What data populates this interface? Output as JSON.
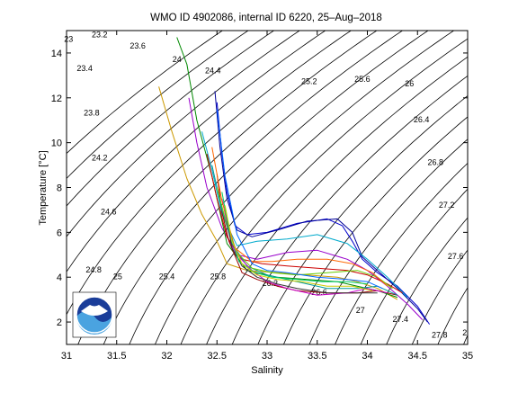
{
  "chart_data": {
    "type": "line",
    "title": "WMO ID 4902086, internal ID 6220, 25–Aug–2018",
    "xlabel": "Salinity",
    "ylabel": "Temperature [°C]",
    "xlim": [
      31,
      35
    ],
    "ylim": [
      1,
      15
    ],
    "xticks": [
      "31",
      "31.5",
      "32",
      "32.5",
      "33",
      "33.5",
      "34",
      "34.5",
      "35"
    ],
    "yticks": [
      "2",
      "4",
      "6",
      "8",
      "10",
      "12",
      "14"
    ],
    "grid": false,
    "isopycnal_labels": [
      {
        "text": "23",
        "s": 31.02,
        "t": 14.6
      },
      {
        "text": "23.2",
        "s": 31.33,
        "t": 14.8
      },
      {
        "text": "23.4",
        "s": 31.18,
        "t": 13.3
      },
      {
        "text": "23.6",
        "s": 31.71,
        "t": 14.3
      },
      {
        "text": "23.8",
        "s": 31.25,
        "t": 11.3
      },
      {
        "text": "24",
        "s": 32.1,
        "t": 13.7
      },
      {
        "text": "24.2",
        "s": 31.33,
        "t": 9.3
      },
      {
        "text": "24.4",
        "s": 32.46,
        "t": 13.2
      },
      {
        "text": "24.6",
        "s": 31.42,
        "t": 6.9
      },
      {
        "text": "24.8",
        "s": 31.27,
        "t": 4.3
      },
      {
        "text": "25",
        "s": 31.51,
        "t": 4.0
      },
      {
        "text": "25.2",
        "s": 33.42,
        "t": 12.7
      },
      {
        "text": "25.4",
        "s": 32.0,
        "t": 4.0
      },
      {
        "text": "25.6",
        "s": 33.95,
        "t": 12.8
      },
      {
        "text": "25.8",
        "s": 32.51,
        "t": 4.0
      },
      {
        "text": "26",
        "s": 34.42,
        "t": 12.6
      },
      {
        "text": "26.2",
        "s": 33.03,
        "t": 3.7
      },
      {
        "text": "26.4",
        "s": 34.54,
        "t": 11.0
      },
      {
        "text": "26.6",
        "s": 33.52,
        "t": 3.3
      },
      {
        "text": "26.8",
        "s": 34.68,
        "t": 9.1
      },
      {
        "text": "27",
        "s": 33.93,
        "t": 2.5
      },
      {
        "text": "27.2",
        "s": 34.79,
        "t": 7.2
      },
      {
        "text": "27.4",
        "s": 34.33,
        "t": 2.1
      },
      {
        "text": "27.6",
        "s": 34.88,
        "t": 4.9
      },
      {
        "text": "27.8",
        "s": 34.72,
        "t": 1.4
      },
      {
        "text": "2",
        "s": 34.97,
        "t": 1.5
      }
    ],
    "series": [
      {
        "color": "#0000cc",
        "s": [
          32.5,
          32.55,
          32.6,
          32.68,
          32.8,
          33.0,
          33.3,
          33.6,
          33.75,
          33.85,
          33.95,
          34.1,
          34.3,
          34.5,
          34.62
        ],
        "t": [
          11.8,
          9.5,
          7.8,
          6.3,
          5.9,
          6.0,
          6.4,
          6.6,
          6.3,
          5.6,
          4.8,
          4.2,
          3.6,
          2.7,
          1.9
        ]
      },
      {
        "color": "#000099",
        "s": [
          32.48,
          32.53,
          32.6,
          32.7,
          32.85,
          33.1,
          33.4,
          33.7,
          33.85,
          33.95,
          34.1,
          34.3,
          34.5,
          34.6
        ],
        "t": [
          12.3,
          9.8,
          7.5,
          6.1,
          5.8,
          6.1,
          6.5,
          6.6,
          6.0,
          4.9,
          4.3,
          3.5,
          2.6,
          2.0
        ]
      },
      {
        "color": "#9900cc",
        "s": [
          32.22,
          32.3,
          32.4,
          32.55,
          32.7,
          32.9,
          33.2,
          33.5,
          33.8,
          34.0,
          34.2,
          34.4,
          34.55
        ],
        "t": [
          12.0,
          10.0,
          8.0,
          6.2,
          5.0,
          4.8,
          5.1,
          5.2,
          4.8,
          4.3,
          3.6,
          2.8,
          2.1
        ]
      },
      {
        "color": "#cc9900",
        "s": [
          31.92,
          32.05,
          32.2,
          32.35,
          32.5,
          32.6,
          32.8,
          33.1,
          33.4,
          33.7,
          33.9,
          34.1,
          34.3
        ],
        "t": [
          12.5,
          10.5,
          8.4,
          6.8,
          5.6,
          4.6,
          4.3,
          4.2,
          4.1,
          4.0,
          3.8,
          3.5,
          3.0
        ]
      },
      {
        "color": "#008800",
        "s": [
          32.1,
          32.2,
          32.3,
          32.45,
          32.6,
          32.8,
          33.1,
          33.4,
          33.7,
          33.9,
          34.1,
          34.3
        ],
        "t": [
          14.7,
          13.5,
          11.0,
          8.5,
          5.5,
          4.3,
          4.0,
          3.9,
          3.8,
          3.6,
          3.4,
          3.1
        ]
      },
      {
        "color": "#00aacc",
        "s": [
          32.35,
          32.45,
          32.55,
          32.7,
          32.9,
          33.2,
          33.5,
          33.8,
          34.0,
          34.2,
          34.4
        ],
        "t": [
          10.5,
          8.8,
          6.8,
          5.4,
          5.6,
          5.7,
          5.9,
          5.5,
          4.8,
          4.0,
          3.1
        ]
      },
      {
        "color": "#cc0000",
        "s": [
          32.4,
          32.5,
          32.6,
          32.75,
          32.95,
          33.2,
          33.5,
          33.8,
          34.0,
          34.2,
          34.35
        ],
        "t": [
          9.5,
          7.5,
          5.8,
          4.8,
          4.6,
          4.5,
          4.4,
          4.3,
          4.1,
          3.7,
          3.3
        ]
      },
      {
        "color": "#990000",
        "s": [
          32.5,
          32.55,
          32.62,
          32.75,
          32.9,
          33.1,
          33.3,
          33.6,
          33.9,
          34.1,
          34.3
        ],
        "t": [
          8.6,
          6.9,
          5.6,
          4.2,
          3.9,
          3.6,
          3.4,
          3.3,
          3.3,
          3.4,
          3.2
        ]
      },
      {
        "color": "#009999",
        "s": [
          32.45,
          32.55,
          32.65,
          32.8,
          33.0,
          33.3,
          33.6,
          33.9,
          34.1,
          34.3
        ],
        "t": [
          9.0,
          7.0,
          5.5,
          4.5,
          4.1,
          3.8,
          3.5,
          3.5,
          3.6,
          3.2
        ]
      },
      {
        "color": "#66cc00",
        "s": [
          32.5,
          32.6,
          32.7,
          32.85,
          33.05,
          33.3,
          33.6,
          33.9,
          34.1,
          34.25
        ],
        "t": [
          8.0,
          6.3,
          5.1,
          4.4,
          4.2,
          4.1,
          4.2,
          4.3,
          4.0,
          3.5
        ]
      },
      {
        "color": "#cc00cc",
        "s": [
          32.55,
          32.62,
          32.72,
          32.85,
          33.0,
          33.2,
          33.5,
          33.8,
          34.0,
          34.2
        ],
        "t": [
          7.5,
          6.0,
          4.9,
          4.3,
          3.8,
          3.5,
          3.2,
          3.3,
          3.5,
          3.3
        ]
      },
      {
        "color": "#ff6600",
        "s": [
          32.45,
          32.55,
          32.68,
          32.85,
          33.05,
          33.3,
          33.6,
          33.85,
          34.05,
          34.2
        ],
        "t": [
          9.8,
          7.4,
          5.3,
          4.7,
          4.7,
          4.8,
          4.8,
          4.6,
          4.2,
          3.6
        ]
      },
      {
        "color": "#0066ff",
        "s": [
          32.5,
          32.58,
          32.7,
          32.85,
          33.0,
          33.2,
          33.5,
          33.8,
          34.0,
          34.15
        ],
        "t": [
          11.5,
          8.5,
          5.9,
          4.6,
          4.3,
          4.2,
          4.0,
          3.9,
          3.8,
          3.5
        ]
      },
      {
        "color": "#333333",
        "s": [
          32.6,
          32.65,
          32.75,
          32.9,
          33.1,
          33.3,
          33.6,
          33.9,
          34.1
        ],
        "t": [
          6.5,
          5.3,
          4.5,
          4.0,
          3.7,
          3.5,
          3.3,
          3.3,
          3.3
        ]
      },
      {
        "color": "#00cc66",
        "s": [
          32.55,
          32.62,
          32.72,
          32.88,
          33.05,
          33.3,
          33.55,
          33.8,
          34.0
        ],
        "t": [
          7.8,
          6.1,
          4.7,
          4.2,
          4.0,
          3.9,
          3.8,
          3.8,
          3.7
        ]
      },
      {
        "color": "#cccc00",
        "s": [
          32.58,
          32.65,
          32.75,
          32.9,
          33.1,
          33.35,
          33.6,
          33.85,
          34.05
        ],
        "t": [
          7.2,
          5.6,
          4.6,
          4.1,
          3.9,
          3.8,
          3.6,
          3.6,
          3.4
        ]
      }
    ]
  }
}
